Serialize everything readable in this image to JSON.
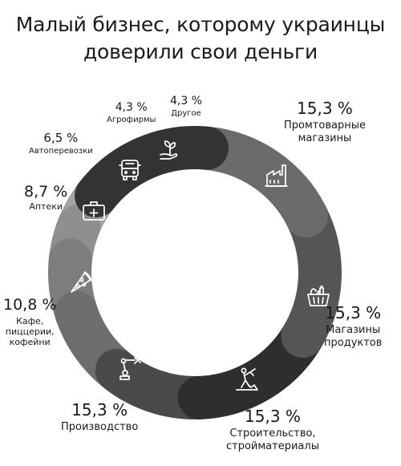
{
  "header": {
    "title_line1": "Малый бизнес, которому украинцы",
    "title_line2": "доверили свои деньги"
  },
  "chart_data": {
    "type": "pie",
    "title": "Малый бизнес, которому украинцы доверили свои деньги",
    "donut": true,
    "slices": [
      {
        "label": "Промтоварные магазины",
        "label_lines": [
          "Промтоварные",
          "магазины"
        ],
        "value": 15.3,
        "value_label": "15,3 %",
        "icon": "factory-icon",
        "color": "#333333"
      },
      {
        "label": "Магазины продуктов",
        "label_lines": [
          "Магазины",
          "продуктов"
        ],
        "value": 15.3,
        "value_label": "15,3 %",
        "icon": "grocery-basket-icon",
        "color": "#6b6b6b"
      },
      {
        "label": "Строительство, стройматериалы",
        "label_lines": [
          "Строительство,",
          "стройматериалы"
        ],
        "value": 15.3,
        "value_label": "15,3 %",
        "icon": "construction-worker-icon",
        "color": "#555555"
      },
      {
        "label": "Производство",
        "label_lines": [
          "Производство"
        ],
        "value": 15.3,
        "value_label": "15,3 %",
        "icon": "robot-arm-icon",
        "color": "#2e2e2e"
      },
      {
        "label": "Кафе, пиццерии, кофейни",
        "label_lines": [
          "Кафе,",
          "пиццерии,",
          "кофейни"
        ],
        "value": 10.8,
        "value_label": "10,8 %",
        "icon": "pizza-slice-icon",
        "color": "#4a4a4a"
      },
      {
        "label": "Аптеки",
        "label_lines": [
          "Аптеки"
        ],
        "value": 8.7,
        "value_label": "8,7 %",
        "icon": "first-aid-kit-icon",
        "color": "#6e6e6e"
      },
      {
        "label": "Автоперевозки",
        "label_lines": [
          "Автоперевозки"
        ],
        "value": 6.5,
        "value_label": "6,5 %",
        "icon": "truck-icon",
        "color": "#7d7d7d"
      },
      {
        "label": "Агрофирмы",
        "label_lines": [
          "Агрофирмы"
        ],
        "value": 4.3,
        "value_label": "4,3 %",
        "icon": "plant-in-hand-icon",
        "color": "#8f8f8f"
      },
      {
        "label": "Другое",
        "label_lines": [
          "Другое"
        ],
        "value": 4.3,
        "value_label": "4,3 %",
        "icon": "",
        "color": "#a3a3a3"
      }
    ]
  }
}
